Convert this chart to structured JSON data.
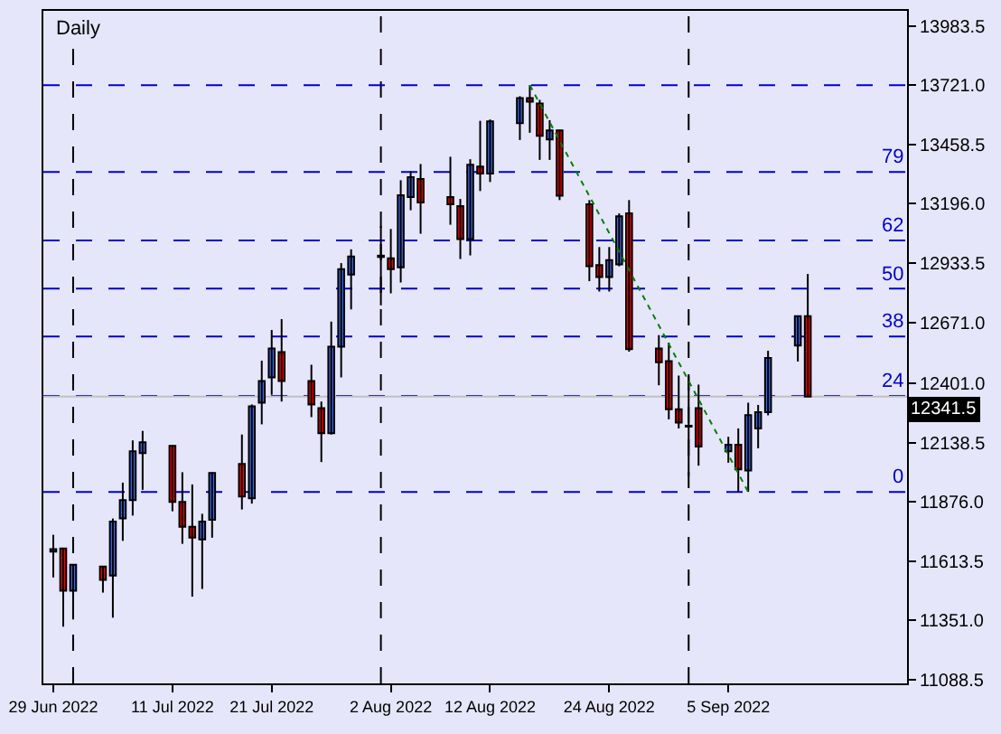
{
  "chart_data": {
    "type": "candlestick",
    "title": "Daily",
    "x": [
      "2022-06-29",
      "2022-06-30",
      "2022-07-01",
      "2022-07-04",
      "2022-07-05",
      "2022-07-06",
      "2022-07-07",
      "2022-07-08",
      "2022-07-11",
      "2022-07-12",
      "2022-07-13",
      "2022-07-14",
      "2022-07-15",
      "2022-07-18",
      "2022-07-19",
      "2022-07-20",
      "2022-07-21",
      "2022-07-22",
      "2022-07-25",
      "2022-07-26",
      "2022-07-27",
      "2022-07-28",
      "2022-07-29",
      "2022-08-01",
      "2022-08-02",
      "2022-08-03",
      "2022-08-04",
      "2022-08-05",
      "2022-08-08",
      "2022-08-09",
      "2022-08-10",
      "2022-08-11",
      "2022-08-12",
      "2022-08-15",
      "2022-08-16",
      "2022-08-17",
      "2022-08-18",
      "2022-08-19",
      "2022-08-22",
      "2022-08-23",
      "2022-08-24",
      "2022-08-25",
      "2022-08-26",
      "2022-08-29",
      "2022-08-30",
      "2022-08-31",
      "2022-09-01",
      "2022-09-02",
      "2022-09-05",
      "2022-09-06",
      "2022-09-07",
      "2022-09-08",
      "2022-09-09",
      "2022-09-12",
      "2022-09-13"
    ],
    "ohlc": [
      [
        11655,
        11730,
        11541,
        11666
      ],
      [
        11669,
        11672,
        11323,
        11482
      ],
      [
        11482,
        11600,
        11355,
        11597
      ],
      [
        11589,
        11592,
        11474,
        11530
      ],
      [
        11549,
        11802,
        11363,
        11788
      ],
      [
        11802,
        11961,
        11703,
        11884
      ],
      [
        11884,
        12148,
        11815,
        12100
      ],
      [
        12092,
        12190,
        11929,
        12140
      ],
      [
        12124,
        12127,
        11834,
        11876
      ],
      [
        11876,
        12007,
        11690,
        11765
      ],
      [
        11765,
        11953,
        11456,
        11717
      ],
      [
        11709,
        11823,
        11490,
        11788
      ],
      [
        11796,
        12007,
        11717,
        12004
      ],
      [
        12044,
        12174,
        11842,
        11900
      ],
      [
        11892,
        12307,
        11868,
        12299
      ],
      [
        12315,
        12501,
        12219,
        12411
      ],
      [
        12427,
        12637,
        12350,
        12555
      ],
      [
        12539,
        12685,
        12320,
        12411
      ],
      [
        12411,
        12483,
        12251,
        12307
      ],
      [
        12291,
        12320,
        12052,
        12180
      ],
      [
        12180,
        12674,
        12174,
        12563
      ],
      [
        12563,
        12933,
        12427,
        12906
      ],
      [
        12882,
        12994,
        12728,
        12962
      ],
      [
        12960,
        13097,
        12746,
        12966
      ],
      [
        12954,
        13084,
        12799,
        12906
      ],
      [
        12914,
        13300,
        12847,
        13233
      ],
      [
        13225,
        13340,
        13167,
        13313
      ],
      [
        13305,
        13372,
        13063,
        13201
      ],
      [
        13225,
        13404,
        13103,
        13193
      ],
      [
        13185,
        13217,
        12951,
        13039
      ],
      [
        13039,
        13393,
        12967,
        13369
      ],
      [
        13361,
        13563,
        13252,
        13329
      ],
      [
        13329,
        13569,
        13292,
        13561
      ],
      [
        13553,
        13672,
        13478,
        13664
      ],
      [
        13664,
        13721,
        13510,
        13648
      ],
      [
        13640,
        13656,
        13390,
        13497
      ],
      [
        13481,
        13566,
        13390,
        13521
      ],
      [
        13521,
        13524,
        13212,
        13231
      ],
      [
        13193,
        13212,
        12853,
        12919
      ],
      [
        12924,
        13004,
        12807,
        12871
      ],
      [
        12871,
        13004,
        12807,
        12946
      ],
      [
        12927,
        13153,
        12919,
        13140
      ],
      [
        13153,
        13212,
        12541,
        12552
      ],
      [
        12555,
        12614,
        12392,
        12494
      ],
      [
        12499,
        12581,
        12241,
        12286
      ],
      [
        12286,
        12435,
        12201,
        12227
      ],
      [
        12209,
        12432,
        11989,
        12213
      ],
      [
        12291,
        12395,
        12036,
        12121
      ],
      [
        12100,
        12164,
        12049,
        12129
      ],
      [
        12129,
        12201,
        11920,
        12020
      ],
      [
        12015,
        12315,
        11920,
        12260
      ],
      [
        12201,
        12305,
        12113,
        12273
      ],
      [
        12273,
        12545,
        12259,
        12513
      ],
      [
        12568,
        12700,
        12497,
        12698
      ],
      [
        12698,
        12885,
        12341.5,
        12341.5
      ]
    ],
    "colors": [
      "#4169e1",
      "#ff0000",
      "#4169e1",
      "#ff0000",
      "#4169e1",
      "#4169e1",
      "#4169e1",
      "#4169e1",
      "#ff0000",
      "#ff0000",
      "#ff0000",
      "#4169e1",
      "#4169e1",
      "#ff0000",
      "#4169e1",
      "#4169e1",
      "#4169e1",
      "#ff0000",
      "#ff0000",
      "#ff0000",
      "#4169e1",
      "#4169e1",
      "#4169e1",
      "#4169e1",
      "#ff0000",
      "#4169e1",
      "#4169e1",
      "#ff0000",
      "#ff0000",
      "#ff0000",
      "#4169e1",
      "#ff0000",
      "#4169e1",
      "#4169e1",
      "#ff0000",
      "#ff0000",
      "#4169e1",
      "#ff0000",
      "#ff0000",
      "#ff0000",
      "#4169e1",
      "#4169e1",
      "#ff0000",
      "#ff0000",
      "#ff0000",
      "#ff0000",
      "#4169e1",
      "#ff0000",
      "#4169e1",
      "#ff0000",
      "#4169e1",
      "#4169e1",
      "#4169e1",
      "#4169e1",
      "#ff0000"
    ],
    "series": [
      {
        "type": "line",
        "x": [
          "2022-08-16",
          "2022-09-07"
        ],
        "values": [
          13721,
          11920
        ],
        "color": "#008000",
        "line_style": "dotted"
      }
    ],
    "xlim": [
      "2022-06-28",
      "2022-09-23"
    ],
    "xticks": [
      {
        "value": "2022-06-29",
        "label": "29 Jun 2022"
      },
      {
        "value": "2022-07-11",
        "label": "11 Jul 2022"
      },
      {
        "value": "2022-07-21",
        "label": "21 Jul 2022"
      },
      {
        "value": "2022-08-02",
        "label": "2 Aug 2022"
      },
      {
        "value": "2022-08-12",
        "label": "12 Aug 2022"
      },
      {
        "value": "2022-08-24",
        "label": "24 Aug 2022"
      },
      {
        "value": "2022-09-05",
        "label": "5 Sep 2022"
      }
    ],
    "ylim": [
      11072,
      14050
    ],
    "yticks": [
      {
        "value": 11088.5,
        "label": "11088.5"
      },
      {
        "value": 11351,
        "label": "11351.0"
      },
      {
        "value": 11613.5,
        "label": "11613.5"
      },
      {
        "value": 11876,
        "label": "11876.0"
      },
      {
        "value": 12138.5,
        "label": "12138.5"
      },
      {
        "value": 12401,
        "label": "12401.0"
      },
      {
        "value": 12671,
        "label": "12671.0"
      },
      {
        "value": 12933.5,
        "label": "12933.5"
      },
      {
        "value": 13196,
        "label": "13196.0"
      },
      {
        "value": 13458.5,
        "label": "13458.5"
      },
      {
        "value": 13721,
        "label": "13721.0"
      },
      {
        "value": 13983.5,
        "label": "13983.5"
      }
    ],
    "ref_lines": [
      {
        "axis": "x",
        "value": "2022-07-01",
        "color": "#000000",
        "line_style": "dashed"
      },
      {
        "axis": "x",
        "value": "2022-08-01",
        "color": "#000000",
        "line_style": "dashed"
      },
      {
        "axis": "x",
        "value": "2022-09-01",
        "color": "#000000",
        "line_style": "dashed"
      },
      {
        "axis": "y",
        "value": 11920,
        "color": "#0000cd",
        "line_style": "dashed"
      },
      {
        "axis": "y",
        "value": 12345,
        "color": "#0000cd",
        "line_style": "dashed"
      },
      {
        "axis": "y",
        "value": 12608,
        "color": "#0000cd",
        "line_style": "dashed"
      },
      {
        "axis": "y",
        "value": 12820,
        "color": "#0000cd",
        "line_style": "dashed"
      },
      {
        "axis": "y",
        "value": 13033,
        "color": "#0000cd",
        "line_style": "dashed"
      },
      {
        "axis": "y",
        "value": 13337,
        "color": "#0000cd",
        "line_style": "dashed"
      },
      {
        "axis": "y",
        "value": 13721,
        "color": "#0000cd",
        "line_style": "dashed"
      },
      {
        "axis": "y",
        "value": 12341.5,
        "label": "12341.5",
        "color": "#c0c0c0",
        "line_style": "solid"
      }
    ],
    "annotations": [
      {
        "text": "0",
        "x": "2022-09-23",
        "y": 11920
      },
      {
        "text": "24",
        "x": "2022-09-23",
        "y": 12345
      },
      {
        "text": "38",
        "x": "2022-09-23",
        "y": 12608
      },
      {
        "text": "50",
        "x": "2022-09-23",
        "y": 12820
      },
      {
        "text": "62",
        "x": "2022-09-23",
        "y": 13033
      },
      {
        "text": "79",
        "x": "2022-09-23",
        "y": 13337
      }
    ],
    "grid": false
  }
}
